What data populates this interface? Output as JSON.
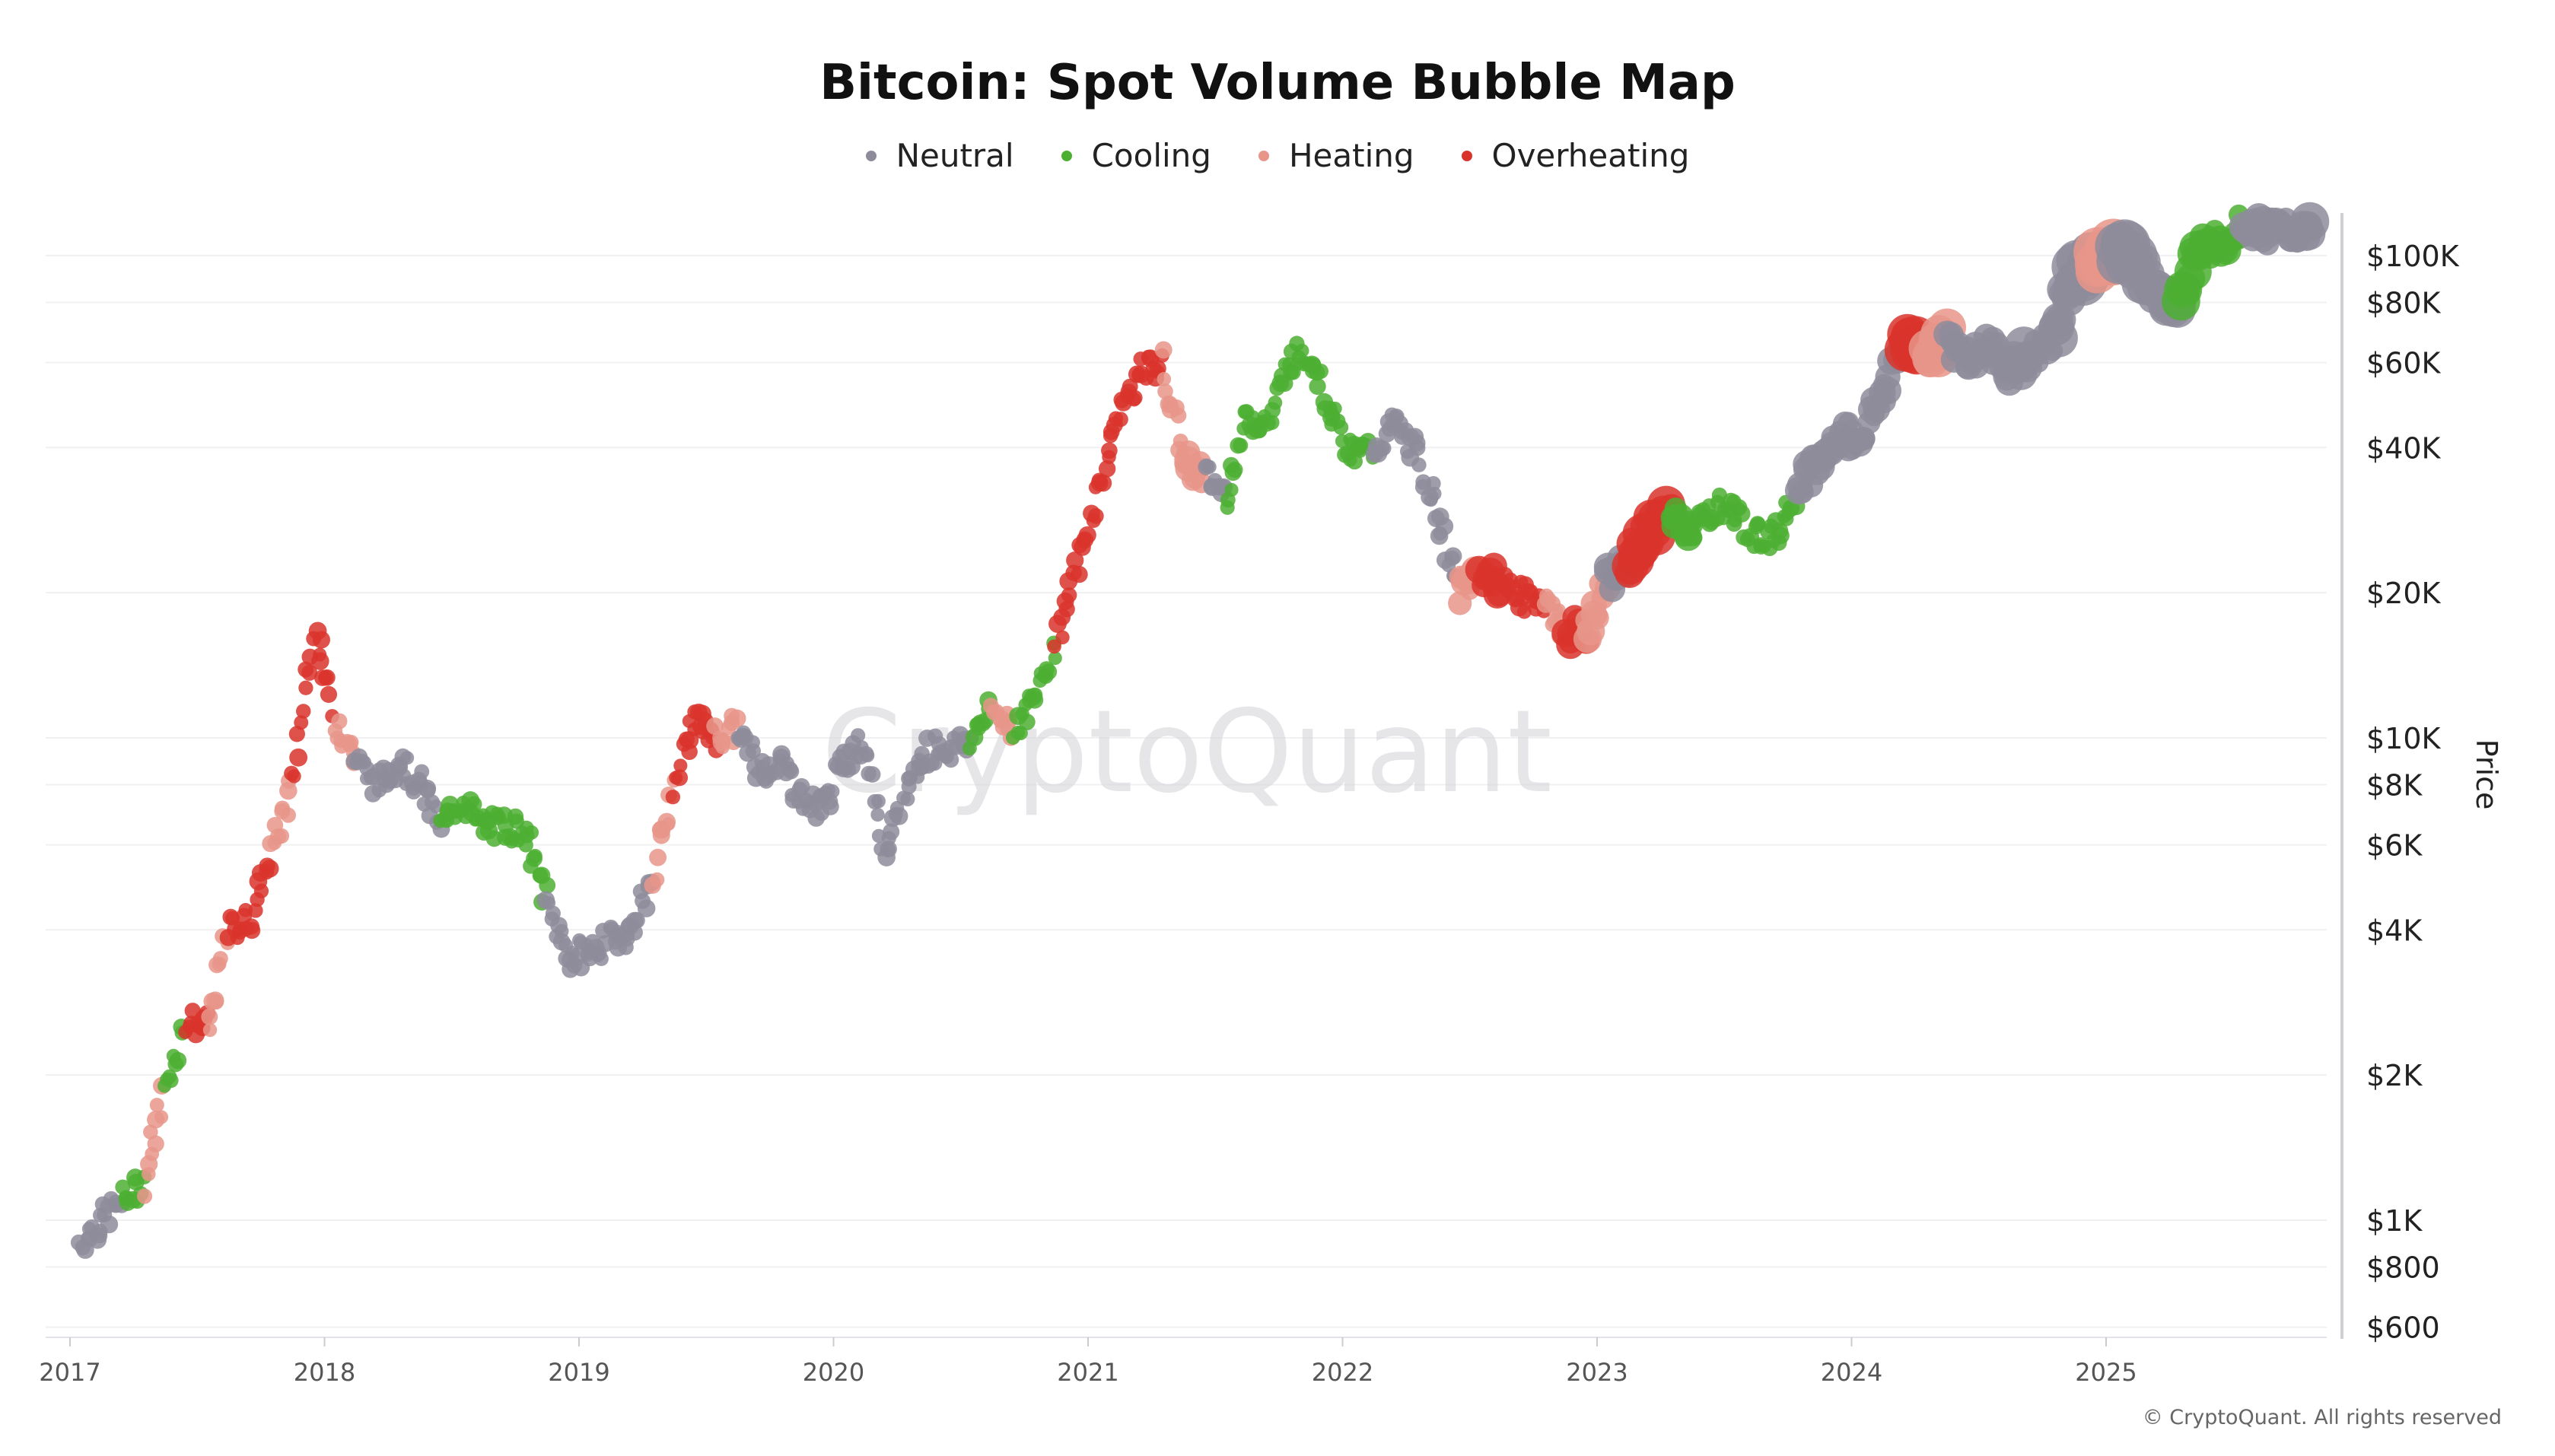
{
  "chart_data": {
    "type": "scatter",
    "title": "Bitcoin: Spot Volume Bubble Map",
    "ylabel": "Price",
    "xlabel": "",
    "y_scale": "log",
    "ylim": [
      600,
      140000
    ],
    "xlim": [
      "2017-01",
      "2025-11"
    ],
    "grid": true,
    "legend_position": "top-center",
    "x_ticks": [
      "2017",
      "2018",
      "2019",
      "2020",
      "2021",
      "2022",
      "2023",
      "2024",
      "2025"
    ],
    "y_ticks": [
      {
        "value": 100000,
        "label": "$100K"
      },
      {
        "value": 80000,
        "label": "$80K"
      },
      {
        "value": 60000,
        "label": "$60K"
      },
      {
        "value": 40000,
        "label": "$40K"
      },
      {
        "value": 20000,
        "label": "$20K"
      },
      {
        "value": 10000,
        "label": "$10K"
      },
      {
        "value": 8000,
        "label": "$8K"
      },
      {
        "value": 6000,
        "label": "$6K"
      },
      {
        "value": 4000,
        "label": "$4K"
      },
      {
        "value": 2000,
        "label": "$2K"
      },
      {
        "value": 1000,
        "label": "$1K"
      },
      {
        "value": 800,
        "label": "$800"
      },
      {
        "value": 600,
        "label": "$600"
      }
    ],
    "series": [
      {
        "name": "Neutral",
        "key": "N",
        "color": "#8e8c9b"
      },
      {
        "name": "Cooling",
        "key": "C",
        "color": "#4caf32"
      },
      {
        "name": "Heating",
        "key": "H",
        "color": "#e8958a"
      },
      {
        "name": "Overheating",
        "key": "O",
        "color": "#d9342b"
      }
    ],
    "points": [
      [
        "2017-01",
        900,
        "N",
        1
      ],
      [
        "2017-02",
        1000,
        "N",
        1
      ],
      [
        "2017-03",
        1100,
        "C",
        1
      ],
      [
        "2017-04",
        1200,
        "H",
        1
      ],
      [
        "2017-05",
        1900,
        "C",
        1
      ],
      [
        "2017-06",
        2600,
        "O",
        1
      ],
      [
        "2017-07",
        2500,
        "H",
        1
      ],
      [
        "2017-08",
        4000,
        "O",
        1
      ],
      [
        "2017-09",
        4200,
        "O",
        1
      ],
      [
        "2017-10",
        5800,
        "H",
        1
      ],
      [
        "2017-11",
        8000,
        "O",
        1
      ],
      [
        "2017-12",
        17000,
        "O",
        1
      ],
      [
        "2018-01",
        11000,
        "H",
        1
      ],
      [
        "2018-02",
        9000,
        "N",
        1
      ],
      [
        "2018-03",
        8000,
        "N",
        1
      ],
      [
        "2018-04",
        9000,
        "N",
        1
      ],
      [
        "2018-05",
        8000,
        "N",
        1
      ],
      [
        "2018-06",
        6500,
        "C",
        1
      ],
      [
        "2018-07",
        7500,
        "C",
        1
      ],
      [
        "2018-08",
        6500,
        "C",
        1
      ],
      [
        "2018-09",
        6600,
        "C",
        1
      ],
      [
        "2018-10",
        6400,
        "C",
        1
      ],
      [
        "2018-11",
        4500,
        "N",
        1
      ],
      [
        "2018-12",
        3500,
        "N",
        1
      ],
      [
        "2019-01",
        3600,
        "N",
        1
      ],
      [
        "2019-02",
        3800,
        "N",
        1
      ],
      [
        "2019-03",
        4000,
        "N",
        1
      ],
      [
        "2019-04",
        5200,
        "H",
        1
      ],
      [
        "2019-05",
        8000,
        "O",
        1
      ],
      [
        "2019-06",
        11000,
        "O",
        1
      ],
      [
        "2019-07",
        10000,
        "H",
        1
      ],
      [
        "2019-08",
        10500,
        "N",
        1
      ],
      [
        "2019-09",
        8500,
        "N",
        1
      ],
      [
        "2019-10",
        9000,
        "N",
        1
      ],
      [
        "2019-11",
        7500,
        "N",
        1
      ],
      [
        "2019-12",
        7200,
        "N",
        1
      ],
      [
        "2020-01",
        9000,
        "N",
        1
      ],
      [
        "2020-02",
        9800,
        "N",
        1
      ],
      [
        "2020-03",
        5500,
        "N",
        1
      ],
      [
        "2020-04",
        8000,
        "N",
        1
      ],
      [
        "2020-05",
        9500,
        "N",
        1
      ],
      [
        "2020-06",
        9500,
        "N",
        1
      ],
      [
        "2020-07",
        10000,
        "C",
        1
      ],
      [
        "2020-08",
        11500,
        "H",
        1
      ],
      [
        "2020-09",
        10500,
        "C",
        1
      ],
      [
        "2020-10",
        12000,
        "C",
        1
      ],
      [
        "2020-11",
        16000,
        "O",
        1
      ],
      [
        "2020-12",
        23000,
        "O",
        1
      ],
      [
        "2021-01",
        33000,
        "O",
        1
      ],
      [
        "2021-02",
        48000,
        "O",
        1
      ],
      [
        "2021-03",
        57000,
        "O",
        1
      ],
      [
        "2021-04",
        60000,
        "H",
        1
      ],
      [
        "2021-05",
        38000,
        "H",
        2
      ],
      [
        "2021-06",
        35000,
        "N",
        1
      ],
      [
        "2021-07",
        32000,
        "C",
        1
      ],
      [
        "2021-08",
        46000,
        "C",
        1
      ],
      [
        "2021-09",
        45000,
        "C",
        1
      ],
      [
        "2021-10",
        61000,
        "C",
        1
      ],
      [
        "2021-11",
        63000,
        "C",
        1
      ],
      [
        "2021-12",
        47000,
        "C",
        1
      ],
      [
        "2022-01",
        38000,
        "C",
        1
      ],
      [
        "2022-02",
        40000,
        "N",
        1
      ],
      [
        "2022-03",
        45000,
        "N",
        1
      ],
      [
        "2022-04",
        39000,
        "N",
        1
      ],
      [
        "2022-05",
        29000,
        "N",
        1
      ],
      [
        "2022-06",
        20000,
        "H",
        2
      ],
      [
        "2022-07",
        22000,
        "O",
        2
      ],
      [
        "2022-08",
        21000,
        "O",
        1
      ],
      [
        "2022-09",
        19500,
        "O",
        1
      ],
      [
        "2022-10",
        19500,
        "H",
        1
      ],
      [
        "2022-11",
        16500,
        "O",
        2
      ],
      [
        "2022-12",
        16800,
        "H",
        2
      ],
      [
        "2023-01",
        21000,
        "N",
        2
      ],
      [
        "2023-02",
        23000,
        "O",
        3
      ],
      [
        "2023-03",
        27000,
        "O",
        3
      ],
      [
        "2023-04",
        29000,
        "C",
        2
      ],
      [
        "2023-05",
        27000,
        "C",
        1
      ],
      [
        "2023-06",
        30000,
        "C",
        1
      ],
      [
        "2023-07",
        29500,
        "C",
        1
      ],
      [
        "2023-08",
        26000,
        "C",
        1
      ],
      [
        "2023-09",
        26500,
        "C",
        1
      ],
      [
        "2023-10",
        34000,
        "N",
        2
      ],
      [
        "2023-11",
        37000,
        "N",
        2
      ],
      [
        "2023-12",
        42500,
        "N",
        2
      ],
      [
        "2024-01",
        42000,
        "N",
        2
      ],
      [
        "2024-02",
        52000,
        "N",
        2
      ],
      [
        "2024-03",
        68000,
        "O",
        4
      ],
      [
        "2024-04",
        63000,
        "H",
        3
      ],
      [
        "2024-05",
        67000,
        "N",
        2
      ],
      [
        "2024-06",
        62000,
        "N",
        2
      ],
      [
        "2024-07",
        64000,
        "N",
        2
      ],
      [
        "2024-08",
        58000,
        "N",
        3
      ],
      [
        "2024-09",
        62000,
        "N",
        2
      ],
      [
        "2024-10",
        68000,
        "N",
        3
      ],
      [
        "2024-11",
        90000,
        "N",
        4
      ],
      [
        "2024-12",
        97000,
        "H",
        4
      ],
      [
        "2025-01",
        102000,
        "N",
        4
      ],
      [
        "2025-02",
        95000,
        "N",
        3
      ],
      [
        "2025-03",
        83000,
        "N",
        3
      ],
      [
        "2025-04",
        80000,
        "C",
        3
      ],
      [
        "2025-05",
        105000,
        "C",
        2
      ],
      [
        "2025-06",
        106000,
        "C",
        2
      ],
      [
        "2025-07",
        118000,
        "N",
        2
      ],
      [
        "2025-08",
        113000,
        "N",
        2
      ],
      [
        "2025-09",
        113000,
        "N",
        2
      ],
      [
        "2025-10",
        110000,
        "N",
        3
      ]
    ]
  },
  "watermark": "CryptoQuant",
  "footer": "© CryptoQuant. All rights reserved"
}
